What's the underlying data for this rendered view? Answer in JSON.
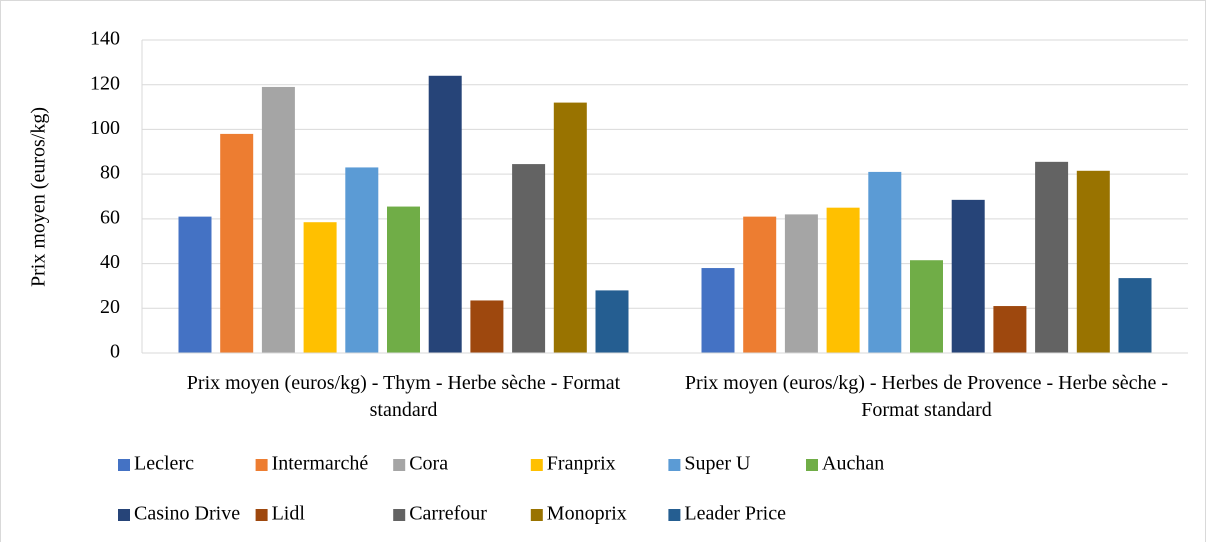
{
  "chart_data": {
    "type": "bar",
    "y_label": "Prix moyen (euros/kg)",
    "categories": [
      "Prix moyen (euros/kg) - Thym - Herbe sèche - Format standard",
      "Prix moyen (euros/kg) - Herbes de Provence - Herbe sèche - Format standard"
    ],
    "series": [
      {
        "name": "Leclerc",
        "color": "#4472c4",
        "values": [
          61,
          38
        ]
      },
      {
        "name": "Intermarché",
        "color": "#ed7d31",
        "values": [
          98,
          61
        ]
      },
      {
        "name": "Cora",
        "color": "#a5a5a5",
        "values": [
          119,
          62
        ]
      },
      {
        "name": "Franprix",
        "color": "#ffc000",
        "values": [
          58.5,
          65
        ]
      },
      {
        "name": "Super U",
        "color": "#5b9bd5",
        "values": [
          83,
          81
        ]
      },
      {
        "name": "Auchan",
        "color": "#70ad47",
        "values": [
          65.5,
          41.5
        ]
      },
      {
        "name": "Casino Drive",
        "color": "#264478",
        "values": [
          124,
          68.5
        ]
      },
      {
        "name": "Lidl",
        "color": "#9e480e",
        "values": [
          23.5,
          21
        ]
      },
      {
        "name": "Carrefour",
        "color": "#636363",
        "values": [
          84.5,
          85.5
        ]
      },
      {
        "name": "Monoprix",
        "color": "#997300",
        "values": [
          112,
          81.5
        ]
      },
      {
        "name": "Leader Price",
        "color": "#255e91",
        "values": [
          28,
          33.5
        ]
      }
    ],
    "ylim": [
      0,
      140
    ],
    "yticks": [
      0,
      20,
      40,
      60,
      80,
      100,
      120,
      140
    ],
    "grid": true,
    "legend": "bottom"
  }
}
